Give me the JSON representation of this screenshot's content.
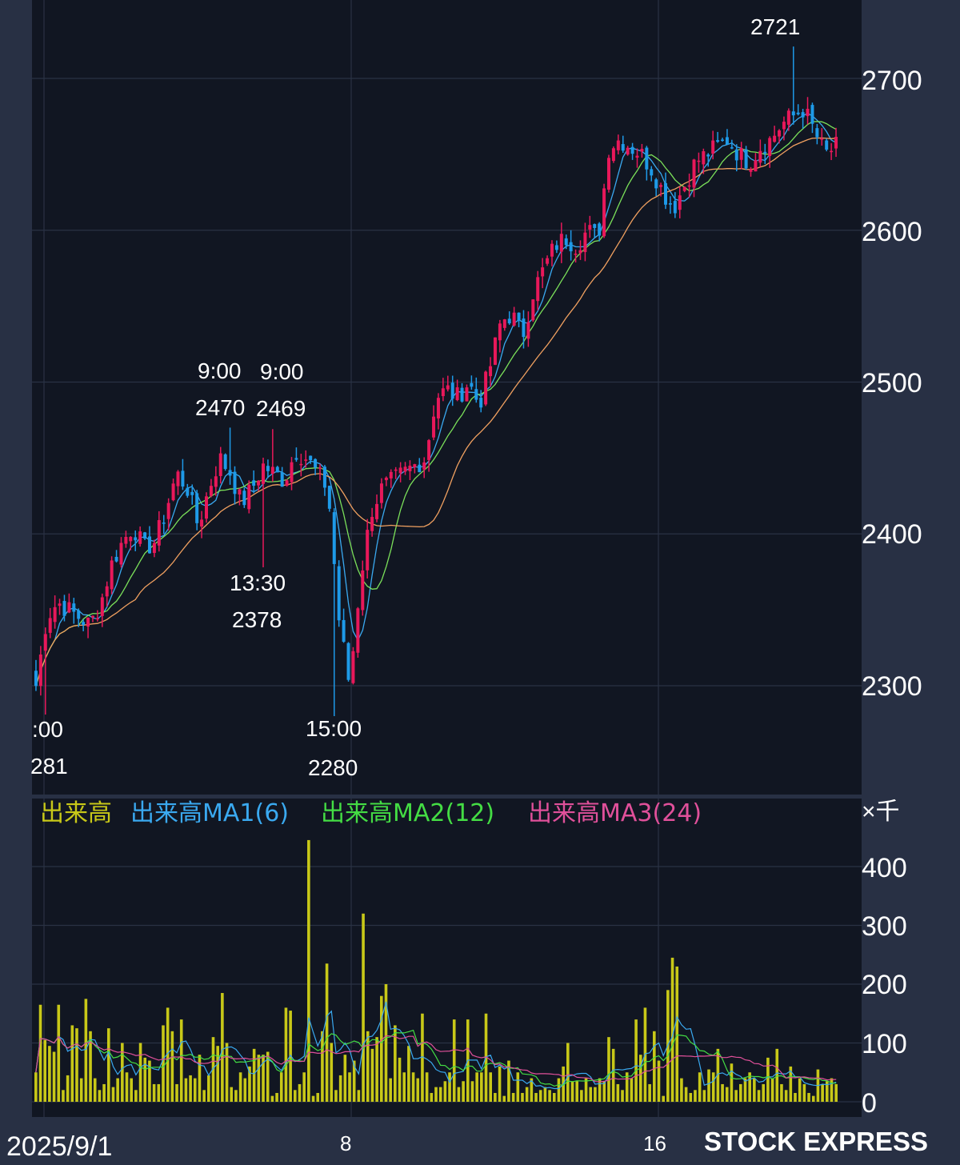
{
  "brand": "STOCK EXPRESS",
  "chart_data": {
    "type": "candlestick",
    "colors": {
      "up": "#e8185a",
      "down": "#1e9ae8",
      "ma1": "#3aa9f0",
      "ma2": "#7be05a",
      "ma3": "#f0a060",
      "volume": "#c8c818"
    },
    "price_ticks": [
      "2700",
      "2600",
      "2500",
      "2400",
      "2300"
    ],
    "price_ylim": [
      2230,
      2750
    ],
    "annotations": [
      {
        "time": ":00",
        "value": "281"
      },
      {
        "time": "9:00",
        "value": "2470"
      },
      {
        "time": "9:00",
        "value": "2469"
      },
      {
        "time": "13:30",
        "value": "2378"
      },
      {
        "time": "15:00",
        "value": "2280"
      },
      {
        "time": "",
        "value": "2721"
      }
    ],
    "x_labels": [
      "2025/9/1",
      "8",
      "16"
    ],
    "volume_legend": [
      "出来高",
      "出来高MA1(6)",
      "出来高MA2(12)",
      "出来高MA3(24)"
    ],
    "volume_unit": "×千",
    "volume_ticks": [
      "400",
      "300",
      "200",
      "100",
      "0"
    ],
    "volume_ylim": [
      0,
      470
    ],
    "close_path": [
      2300,
      2345,
      2355,
      2350,
      2345,
      2340,
      2355,
      2380,
      2395,
      2405,
      2390,
      2395,
      2415,
      2440,
      2430,
      2405,
      2430,
      2450,
      2440,
      2420,
      2430,
      2445,
      2440,
      2435,
      2455,
      2450,
      2440,
      2430,
      2345,
      2300,
      2370,
      2415,
      2430,
      2435,
      2440,
      2445,
      2450,
      2490,
      2495,
      2490,
      2500,
      2485,
      2510,
      2540,
      2545,
      2530,
      2560,
      2575,
      2590,
      2595,
      2590,
      2600,
      2595,
      2655,
      2660,
      2655,
      2650,
      2640,
      2625,
      2615,
      2630,
      2645,
      2650,
      2655,
      2660,
      2650,
      2645,
      2655,
      2660,
      2670,
      2675,
      2680,
      2665,
      2650,
      2655
    ],
    "volume": [
      50,
      165,
      105,
      95,
      85,
      165,
      20,
      45,
      130,
      125,
      40,
      175,
      120,
      40,
      20,
      30,
      125,
      25,
      40,
      100,
      50,
      40,
      20,
      100,
      75,
      70,
      30,
      30,
      130,
      160,
      120,
      30,
      140,
      40,
      45,
      40,
      80,
      20,
      45,
      110,
      95,
      185,
      100,
      25,
      20,
      50,
      40,
      60,
      90,
      80,
      80,
      85,
      10,
      15,
      50,
      160,
      155,
      20,
      30,
      50,
      445,
      10,
      15,
      120,
      235,
      100,
      20,
      45,
      80,
      50,
      70,
      20,
      320,
      120,
      90,
      110,
      180,
      200,
      40,
      130,
      75,
      50,
      95,
      50,
      40,
      150,
      50,
      15,
      25,
      25,
      35,
      50,
      140,
      25,
      35,
      140,
      35,
      50,
      50,
      150,
      50,
      15,
      60,
      10,
      70,
      15,
      50,
      15,
      25,
      40,
      15,
      20,
      25,
      20,
      15,
      40,
      60,
      100,
      35,
      35,
      20,
      40,
      25,
      25,
      40,
      35,
      110,
      90,
      30,
      20,
      50,
      40,
      140,
      80,
      160,
      30,
      120,
      70,
      10,
      190,
      245,
      230,
      40,
      25,
      15,
      20,
      50,
      20,
      55,
      50,
      90,
      30,
      25,
      65,
      20,
      30,
      40,
      50,
      40,
      20,
      30,
      75,
      40,
      90,
      30,
      20,
      60,
      15,
      40,
      30,
      15,
      10,
      55,
      30,
      35,
      40,
      30
    ]
  }
}
